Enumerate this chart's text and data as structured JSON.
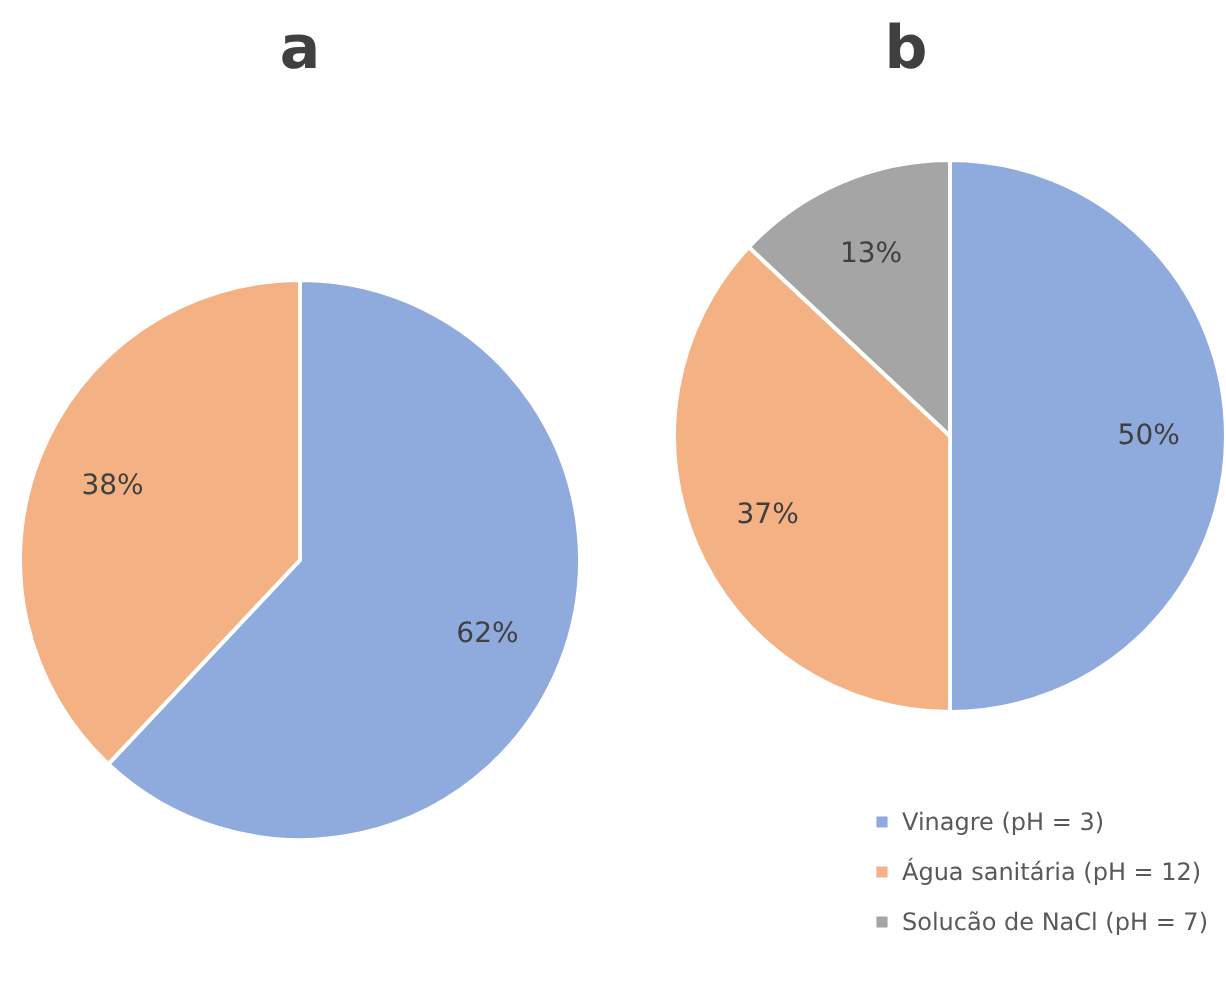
{
  "chart_data": [
    {
      "type": "pie",
      "title": "a",
      "categories": [
        null,
        null
      ],
      "values": [
        62,
        38
      ],
      "colors": [
        "#8faadc",
        "#f4b183"
      ],
      "value_labels": [
        "62%",
        "38%"
      ]
    },
    {
      "type": "pie",
      "title": "b",
      "categories": [
        "Vinagre (pH = 3)",
        "Água sanitária (pH = 12)",
        "Solucão de NaCl (pH = 7)"
      ],
      "values": [
        50,
        37,
        13
      ],
      "colors": [
        "#8faadc",
        "#f4b183",
        "#a5a5a5"
      ],
      "value_labels": [
        "50%",
        "37%",
        "13%"
      ],
      "legend": "bottom right"
    }
  ]
}
